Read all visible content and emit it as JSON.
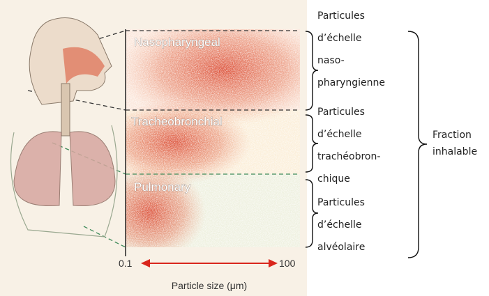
{
  "zones": [
    "Nasopharyngeal",
    "Tracheobronchial",
    "Pulmonary"
  ],
  "axis": {
    "min_label": "0.1",
    "max_label": "100",
    "title": "Particle size (μm)"
  },
  "labels": [
    {
      "lines": [
        "Particules",
        "d’échelle",
        "naso-",
        "pharyngienne"
      ]
    },
    {
      "lines": [
        "Particules",
        "d’échelle",
        "trachéobron-",
        "chique"
      ]
    },
    {
      "lines": [
        "Particules",
        "d’échelle",
        "alvéolaire"
      ]
    }
  ],
  "fraction": {
    "lines": [
      "Fraction",
      "inhalable"
    ]
  }
}
